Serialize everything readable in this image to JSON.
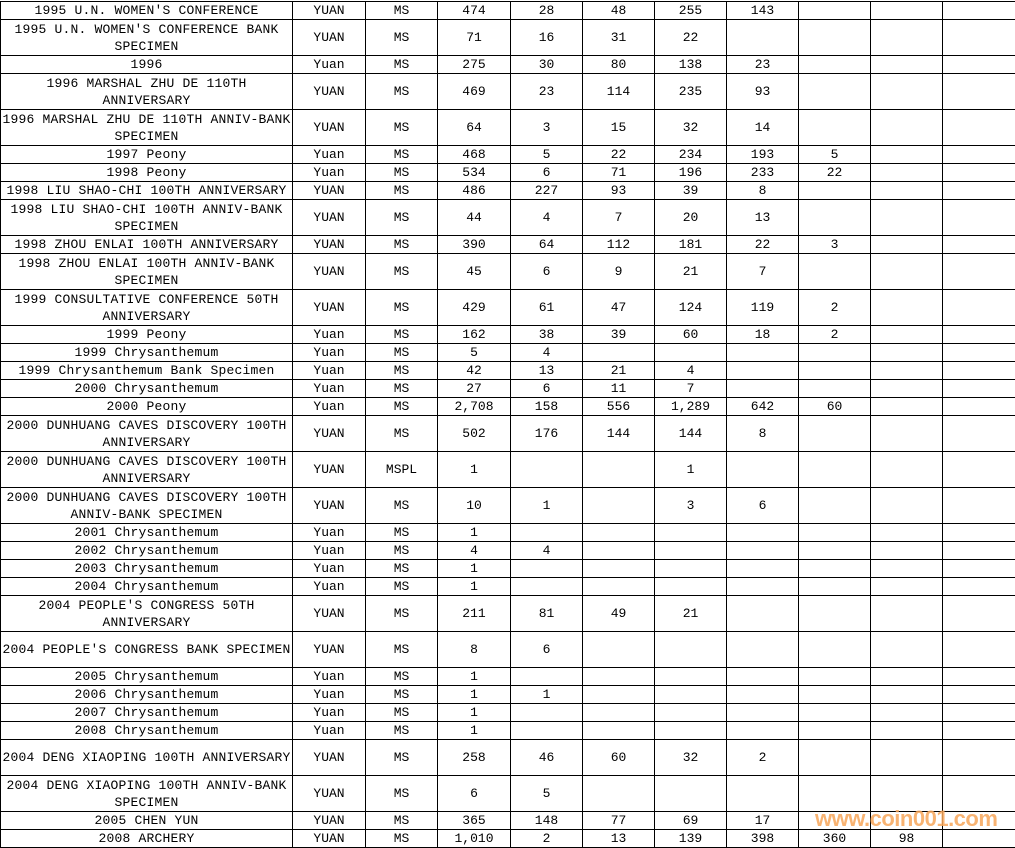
{
  "rows": [
    {
      "name": "1995 U.N. WOMEN'S CONFERENCE",
      "unit": "YUAN",
      "grade": "MS",
      "total": "474",
      "counts": [
        "28",
        "48",
        "255",
        "143",
        "",
        "",
        ""
      ]
    },
    {
      "name": "1995 U.N. WOMEN'S CONFERENCE BANK SPECIMEN",
      "unit": "YUAN",
      "grade": "MS",
      "total": "71",
      "counts": [
        "16",
        "31",
        "22",
        "",
        "",
        "",
        ""
      ]
    },
    {
      "name": "1996",
      "unit": "Yuan",
      "grade": "MS",
      "total": "275",
      "counts": [
        "30",
        "80",
        "138",
        "23",
        "",
        "",
        ""
      ]
    },
    {
      "name": "1996 MARSHAL ZHU DE 110TH ANNIVERSARY",
      "unit": "YUAN",
      "grade": "MS",
      "total": "469",
      "counts": [
        "23",
        "114",
        "235",
        "93",
        "",
        "",
        ""
      ]
    },
    {
      "name": "1996 MARSHAL ZHU DE 110TH ANNIV-BANK SPECIMEN",
      "unit": "YUAN",
      "grade": "MS",
      "total": "64",
      "counts": [
        "3",
        "15",
        "32",
        "14",
        "",
        "",
        ""
      ]
    },
    {
      "name": "1997 Peony",
      "unit": "Yuan",
      "grade": "MS",
      "total": "468",
      "counts": [
        "5",
        "22",
        "234",
        "193",
        "5",
        "",
        ""
      ]
    },
    {
      "name": "1998 Peony",
      "unit": "Yuan",
      "grade": "MS",
      "total": "534",
      "counts": [
        "6",
        "71",
        "196",
        "233",
        "22",
        "",
        ""
      ]
    },
    {
      "name": "1998 LIU SHAO-CHI 100TH ANNIVERSARY",
      "unit": "YUAN",
      "grade": "MS",
      "total": "486",
      "counts": [
        "227",
        "93",
        "39",
        "8",
        "",
        "",
        ""
      ]
    },
    {
      "name": "1998 LIU SHAO-CHI 100TH ANNIV-BANK SPECIMEN",
      "unit": "YUAN",
      "grade": "MS",
      "total": "44",
      "counts": [
        "4",
        "7",
        "20",
        "13",
        "",
        "",
        ""
      ]
    },
    {
      "name": "1998 ZHOU ENLAI 100TH ANNIVERSARY",
      "unit": "YUAN",
      "grade": "MS",
      "total": "390",
      "counts": [
        "64",
        "112",
        "181",
        "22",
        "3",
        "",
        ""
      ]
    },
    {
      "name": "1998 ZHOU ENLAI 100TH ANNIV-BANK SPECIMEN",
      "unit": "YUAN",
      "grade": "MS",
      "total": "45",
      "counts": [
        "6",
        "9",
        "21",
        "7",
        "",
        "",
        ""
      ]
    },
    {
      "name": "1999 CONSULTATIVE CONFERENCE 50TH ANNIVERSARY",
      "unit": "YUAN",
      "grade": "MS",
      "total": "429",
      "counts": [
        "61",
        "47",
        "124",
        "119",
        "2",
        "",
        ""
      ]
    },
    {
      "name": "1999 Peony",
      "unit": "Yuan",
      "grade": "MS",
      "total": "162",
      "counts": [
        "38",
        "39",
        "60",
        "18",
        "2",
        "",
        ""
      ]
    },
    {
      "name": "1999 Chrysanthemum",
      "unit": "Yuan",
      "grade": "MS",
      "total": "5",
      "counts": [
        "4",
        "",
        "",
        "",
        "",
        "",
        ""
      ]
    },
    {
      "name": "1999 Chrysanthemum Bank Specimen",
      "unit": "Yuan",
      "grade": "MS",
      "total": "42",
      "counts": [
        "13",
        "21",
        "4",
        "",
        "",
        "",
        ""
      ]
    },
    {
      "name": "2000 Chrysanthemum",
      "unit": "Yuan",
      "grade": "MS",
      "total": "27",
      "counts": [
        "6",
        "11",
        "7",
        "",
        "",
        "",
        ""
      ]
    },
    {
      "name": "2000 Peony",
      "unit": "Yuan",
      "grade": "MS",
      "total": "2,708",
      "counts": [
        "158",
        "556",
        "1,289",
        "642",
        "60",
        "",
        ""
      ]
    },
    {
      "name": "2000 DUNHUANG CAVES DISCOVERY 100TH ANNIVERSARY",
      "unit": "YUAN",
      "grade": "MS",
      "total": "502",
      "counts": [
        "176",
        "144",
        "144",
        "8",
        "",
        "",
        ""
      ]
    },
    {
      "name": "2000 DUNHUANG CAVES DISCOVERY 100TH ANNIVERSARY",
      "unit": "YUAN",
      "grade": "MSPL",
      "total": "1",
      "counts": [
        "",
        "",
        "1",
        "",
        "",
        "",
        ""
      ]
    },
    {
      "name": "2000 DUNHUANG CAVES DISCOVERY 100TH ANNIV-BANK SPECIMEN",
      "unit": "YUAN",
      "grade": "MS",
      "total": "10",
      "counts": [
        "1",
        "",
        "3",
        "6",
        "",
        "",
        ""
      ]
    },
    {
      "name": "2001 Chrysanthemum",
      "unit": "Yuan",
      "grade": "MS",
      "total": "1",
      "counts": [
        "",
        "",
        "",
        "",
        "",
        "",
        ""
      ]
    },
    {
      "name": "2002 Chrysanthemum",
      "unit": "Yuan",
      "grade": "MS",
      "total": "4",
      "counts": [
        "4",
        "",
        "",
        "",
        "",
        "",
        ""
      ]
    },
    {
      "name": "2003 Chrysanthemum",
      "unit": "Yuan",
      "grade": "MS",
      "total": "1",
      "counts": [
        "",
        "",
        "",
        "",
        "",
        "",
        ""
      ]
    },
    {
      "name": "2004 Chrysanthemum",
      "unit": "Yuan",
      "grade": "MS",
      "total": "1",
      "counts": [
        "",
        "",
        "",
        "",
        "",
        "",
        ""
      ]
    },
    {
      "name": "2004 PEOPLE'S CONGRESS 50TH ANNIVERSARY",
      "unit": "YUAN",
      "grade": "MS",
      "total": "211",
      "counts": [
        "81",
        "49",
        "21",
        "",
        "",
        "",
        ""
      ]
    },
    {
      "name": "2004 PEOPLE'S CONGRESS BANK SPECIMEN",
      "unit": "YUAN",
      "grade": "MS",
      "total": "8",
      "counts": [
        "6",
        "",
        "",
        "",
        "",
        "",
        ""
      ]
    },
    {
      "name": "2005 Chrysanthemum",
      "unit": "Yuan",
      "grade": "MS",
      "total": "1",
      "counts": [
        "",
        "",
        "",
        "",
        "",
        "",
        ""
      ]
    },
    {
      "name": "2006 Chrysanthemum",
      "unit": "Yuan",
      "grade": "MS",
      "total": "1",
      "counts": [
        "1",
        "",
        "",
        "",
        "",
        "",
        ""
      ]
    },
    {
      "name": "2007 Chrysanthemum",
      "unit": "Yuan",
      "grade": "MS",
      "total": "1",
      "counts": [
        "",
        "",
        "",
        "",
        "",
        "",
        ""
      ]
    },
    {
      "name": "2008 Chrysanthemum",
      "unit": "Yuan",
      "grade": "MS",
      "total": "1",
      "counts": [
        "",
        "",
        "",
        "",
        "",
        "",
        ""
      ]
    },
    {
      "name": "2004 DENG XIAOPING 100TH ANNIVERSARY",
      "unit": "YUAN",
      "grade": "MS",
      "total": "258",
      "counts": [
        "46",
        "60",
        "32",
        "2",
        "",
        "",
        ""
      ]
    },
    {
      "name": "2004 DENG XIAOPING 100TH ANNIV-BANK SPECIMEN",
      "unit": "YUAN",
      "grade": "MS",
      "total": "6",
      "counts": [
        "5",
        "",
        "",
        "",
        "",
        "",
        ""
      ]
    },
    {
      "name": "2005 CHEN YUN",
      "unit": "YUAN",
      "grade": "MS",
      "total": "365",
      "counts": [
        "148",
        "77",
        "69",
        "17",
        "",
        "",
        ""
      ]
    },
    {
      "name": "2008 ARCHERY",
      "unit": "YUAN",
      "grade": "MS",
      "total": "1,010",
      "counts": [
        "2",
        "13",
        "139",
        "398",
        "360",
        "98",
        ""
      ]
    }
  ],
  "watermark": "www.coin001.com",
  "watermark_color": "#f7a65a"
}
